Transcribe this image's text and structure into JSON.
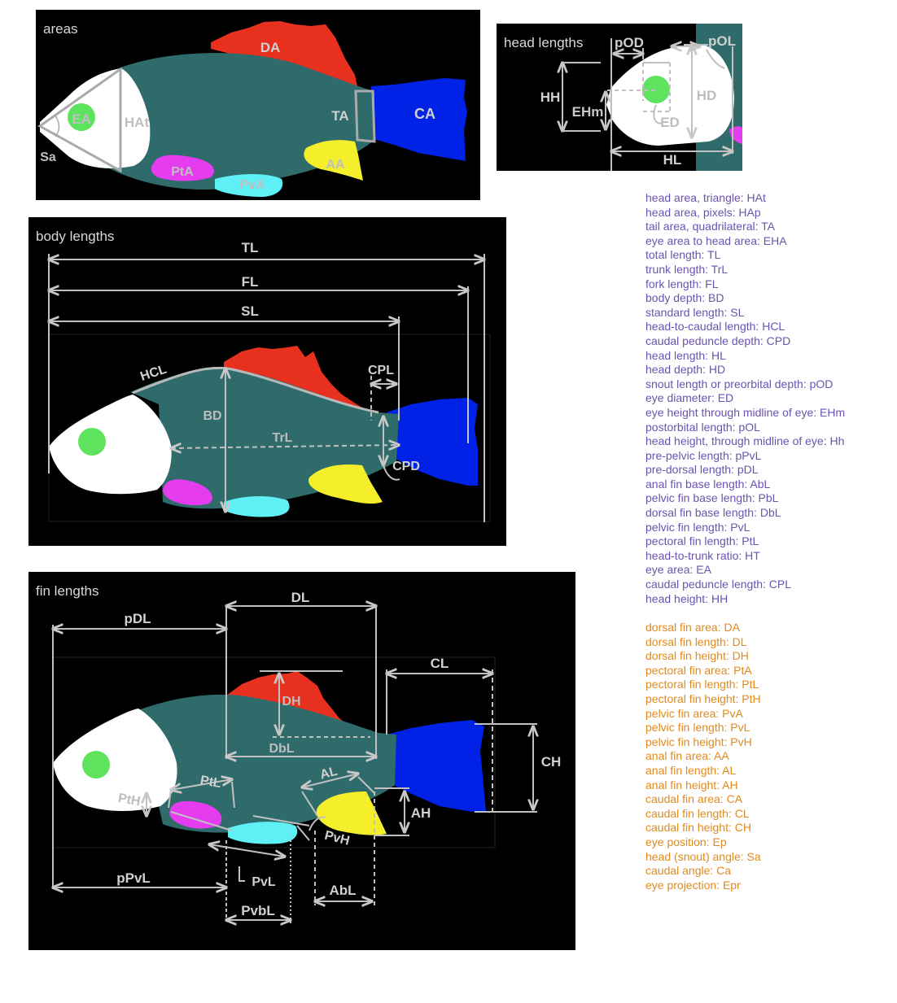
{
  "panels": {
    "areas": "areas",
    "head": "head lengths",
    "body": "body lengths",
    "fins": "fin lengths"
  },
  "labels": {
    "areas": {
      "DA": "DA",
      "EA": "EA",
      "HAt": "HAt",
      "TA": "TA",
      "CA": "CA",
      "Sa": "Sa",
      "PtA": "PtA",
      "PvA": "PvA",
      "AA": "AA"
    },
    "head": {
      "pOD": "pOD",
      "pOL": "pOL",
      "HH": "HH",
      "EHm": "EHm",
      "HD": "HD",
      "ED": "ED",
      "HL": "HL"
    },
    "body": {
      "TL": "TL",
      "FL": "FL",
      "SL": "SL",
      "HCL": "HCL",
      "CPL": "CPL",
      "BD": "BD",
      "TrL": "TrL",
      "CPD": "CPD"
    },
    "fins": {
      "DL": "DL",
      "pDL": "pDL",
      "CL": "CL",
      "DH": "DH",
      "DbL": "DbL",
      "CH": "CH",
      "AL": "AL",
      "PtL": "PtL",
      "PtH": "PtH",
      "AH": "AH",
      "PvH": "PvH",
      "PvL": "PvL",
      "pPvL": "pPvL",
      "AbL": "AbL",
      "PvbL": "PvbL"
    }
  },
  "legend_measurements": [
    "head area, triangle: HAt",
    "head area, pixels: HAp",
    "tail area, quadrilateral: TA",
    "eye area to head area: EHA",
    "total length: TL",
    "trunk length: TrL",
    "fork length: FL",
    "body depth: BD",
    "standard length: SL",
    "head-to-caudal length: HCL",
    "caudal peduncle depth: CPD",
    "head length: HL",
    "head depth: HD",
    "snout length or preorbital depth: pOD",
    "eye diameter: ED",
    "eye height through midline of eye: EHm",
    "postorbital length: pOL",
    "head height, through midline of eye: Hh",
    "pre-pelvic length: pPvL",
    "pre-dorsal length: pDL",
    "anal fin base length: AbL",
    "pelvic fin base length: PbL",
    "dorsal fin base length: DbL",
    "pelvic fin length: PvL",
    "pectoral fin length: PtL",
    "head-to-trunk ratio: HT",
    "eye area: EA",
    "caudal peduncle length: CPL",
    "head height: HH"
  ],
  "legend_fins": [
    "dorsal fin area: DA",
    "dorsal fin length: DL",
    "dorsal fin height: DH",
    "pectoral fin area: PtA",
    "pectoral fin length: PtL",
    "pectoral fin height: PtH",
    "pelvic fin area: PvA",
    "pelvic fin length: PvL",
    "pelvic fin height: PvH",
    "anal fin area: AA",
    "anal fin length: AL",
    "anal fin height: AH",
    "caudal fin area: CA",
    "caudal fin length: CL",
    "caudal fin height: CH",
    "eye position: Ep",
    "head (snout) angle: Sa",
    "caudal angle: Ca",
    "eye projection: Epr"
  ],
  "colors": {
    "body": "#2f6b6b",
    "head": "#ffffff",
    "eye": "#5ee35e",
    "dorsal": "#e8301e",
    "caudal": "#0022e6",
    "anal": "#f5ee2a",
    "pectoral": "#e63cf0",
    "pelvic": "#5ef0f5",
    "measure_line": "#c8c8c8",
    "legend_purple": "#6a53b0",
    "legend_orange": "#e08a1e"
  }
}
